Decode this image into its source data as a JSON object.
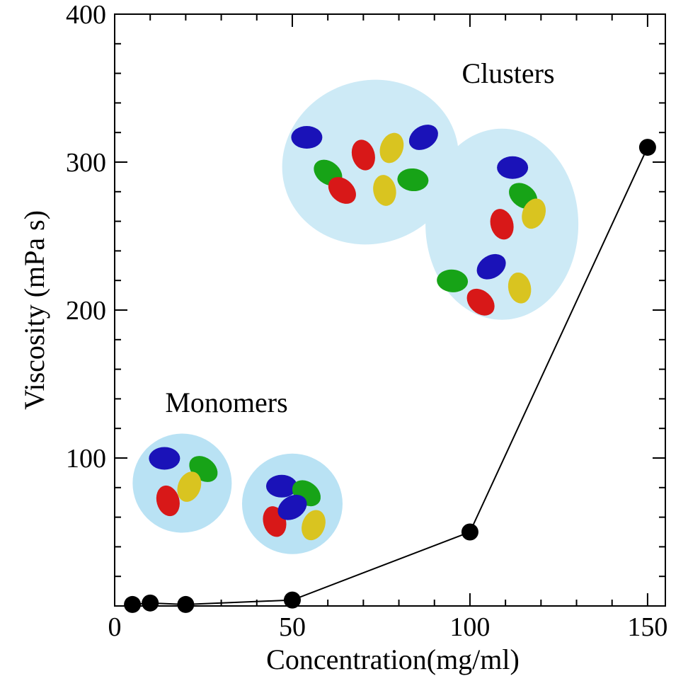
{
  "chart_data": {
    "type": "line",
    "title": "",
    "xlabel": "Concentration(mg/ml)",
    "ylabel": "Viscosity (mPa s)",
    "xlim": [
      0,
      155
    ],
    "ylim": [
      0,
      400
    ],
    "x_ticks": [
      0,
      50,
      100,
      150
    ],
    "y_ticks": [
      100,
      200,
      300,
      400
    ],
    "grid": false,
    "series": [
      {
        "x": [
          5,
          10,
          20,
          50,
          100,
          150
        ],
        "y": [
          1,
          2,
          1,
          4,
          50,
          310
        ],
        "color": "#000000",
        "marker": "circle"
      }
    ],
    "annotations": [
      {
        "text": "Clusters",
        "x": 125,
        "y": 358
      },
      {
        "text": "Monomers",
        "x": 40,
        "y": 135
      }
    ],
    "illustrations": [
      {
        "name": "cluster-blob-upper",
        "cx": 72,
        "cy": 300,
        "color": "#cdeaf6"
      },
      {
        "name": "cluster-blob-right",
        "cx": 109,
        "cy": 258,
        "color": "#cdeaf6"
      },
      {
        "name": "monomer-blob-left",
        "cx": 19,
        "cy": 83,
        "color": "#b9e2f4"
      },
      {
        "name": "monomer-blob-right",
        "cx": 50,
        "cy": 69,
        "color": "#b9e2f4"
      }
    ],
    "domain_colors": [
      "#1a12b8",
      "#17a317",
      "#d81818",
      "#d9c420"
    ]
  }
}
